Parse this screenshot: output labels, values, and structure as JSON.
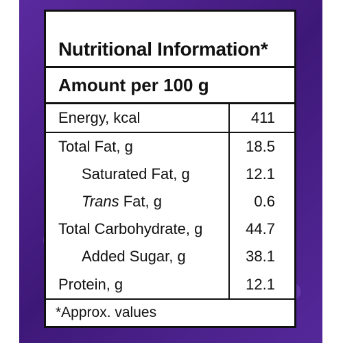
{
  "header": {
    "title": "Nutritional Information*",
    "amount": "Amount per 100 g"
  },
  "rows": [
    {
      "label": "Energy, kcal",
      "value": "411"
    },
    {
      "label": "Total Fat, g",
      "value": "18.5"
    },
    {
      "label": "Saturated Fat, g",
      "value": "12.1"
    },
    {
      "label_italic": "Trans",
      "label": " Fat, g",
      "value": "0.6"
    },
    {
      "label": "Total Carbohydrate, g",
      "value": "44.7"
    },
    {
      "label": "Added Sugar, g",
      "value": "38.1"
    },
    {
      "label": "Protein, g",
      "value": "12.1"
    }
  ],
  "footer": "*Approx. values"
}
